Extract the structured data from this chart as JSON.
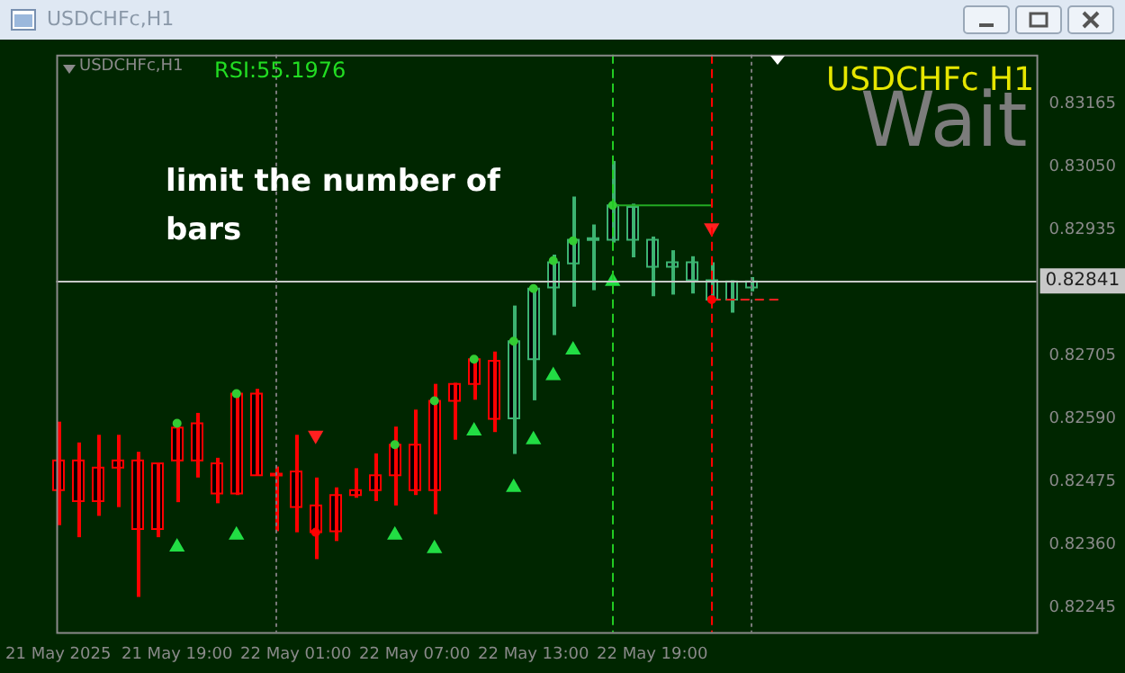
{
  "chart_data": {
    "type": "candlestick",
    "title": "USDCHFc,H1",
    "annotations": [
      "USDCHFc,H1",
      "RSI:55.1976",
      "USDCHFc H1",
      "Wait",
      "limit the number of bars"
    ],
    "x": [
      "2025-05-21T13:00",
      "2025-05-21T14:00",
      "2025-05-21T15:00",
      "2025-05-21T16:00",
      "2025-05-21T17:00",
      "2025-05-21T18:00",
      "2025-05-21T19:00",
      "2025-05-21T20:00",
      "2025-05-21T21:00",
      "2025-05-21T22:00",
      "2025-05-21T23:00",
      "2025-05-22T00:00",
      "2025-05-22T01:00",
      "2025-05-22T02:00",
      "2025-05-22T03:00",
      "2025-05-22T04:00",
      "2025-05-22T05:00",
      "2025-05-22T06:00",
      "2025-05-22T07:00",
      "2025-05-22T08:00",
      "2025-05-22T09:00",
      "2025-05-22T10:00",
      "2025-05-22T11:00",
      "2025-05-22T12:00",
      "2025-05-22T13:00",
      "2025-05-22T14:00",
      "2025-05-22T15:00",
      "2025-05-22T16:00",
      "2025-05-22T17:00",
      "2025-05-22T18:00",
      "2025-05-22T19:00",
      "2025-05-22T20:00",
      "2025-05-22T21:00",
      "2025-05-22T22:00",
      "2025-05-22T23:00",
      "2025-05-23T00:00"
    ],
    "ohlc": [
      [
        0.82513,
        0.82584,
        0.82395,
        0.82459
      ],
      [
        0.82513,
        0.82546,
        0.82373,
        0.82439
      ],
      [
        0.825,
        0.8256,
        0.82412,
        0.82439
      ],
      [
        0.82513,
        0.8256,
        0.82428,
        0.825
      ],
      [
        0.82513,
        0.82529,
        0.82264,
        0.82388
      ],
      [
        0.82508,
        0.82508,
        0.82373,
        0.82388
      ],
      [
        0.82573,
        0.82581,
        0.82437,
        0.82513
      ],
      [
        0.82581,
        0.826,
        0.82482,
        0.82513
      ],
      [
        0.82508,
        0.82518,
        0.82435,
        0.82453
      ],
      [
        0.82635,
        0.82635,
        0.8245,
        0.82453
      ],
      [
        0.82635,
        0.82644,
        0.82486,
        0.82486
      ],
      [
        0.82489,
        0.82502,
        0.82384,
        0.82489
      ],
      [
        0.82493,
        0.8256,
        0.82382,
        0.82428
      ],
      [
        0.82431,
        0.82482,
        0.82333,
        0.82382
      ],
      [
        0.8245,
        0.82464,
        0.82366,
        0.82384
      ],
      [
        0.82459,
        0.82499,
        0.82445,
        0.8245
      ],
      [
        0.82486,
        0.82526,
        0.82439,
        0.82459
      ],
      [
        0.82542,
        0.82575,
        0.82431,
        0.82486
      ],
      [
        0.82542,
        0.82606,
        0.8245,
        0.82459
      ],
      [
        0.82622,
        0.82653,
        0.82415,
        0.82459
      ],
      [
        0.82653,
        0.82655,
        0.82551,
        0.82622
      ],
      [
        0.82698,
        0.82698,
        0.82624,
        0.82653
      ],
      [
        0.82695,
        0.82712,
        0.82565,
        0.82589
      ],
      [
        0.8259,
        0.82796,
        0.82525,
        0.82731
      ],
      [
        0.82698,
        0.82829,
        0.82623,
        0.82827
      ],
      [
        0.82829,
        0.82889,
        0.82742,
        0.82875
      ],
      [
        0.82873,
        0.82995,
        0.82794,
        0.82916
      ],
      [
        0.82919,
        0.82944,
        0.82824,
        0.82919
      ],
      [
        0.82916,
        0.8306,
        0.82911,
        0.82979
      ],
      [
        0.82916,
        0.82982,
        0.82884,
        0.82976
      ],
      [
        0.82867,
        0.82922,
        0.82813,
        0.82916
      ],
      [
        0.82867,
        0.82897,
        0.82816,
        0.82875
      ],
      [
        0.82842,
        0.82886,
        0.82818,
        0.82875
      ],
      [
        0.82807,
        0.82875,
        0.82807,
        0.82842
      ],
      [
        0.82807,
        0.82842,
        0.82783,
        0.8284
      ],
      [
        0.82829,
        0.82848,
        0.82822,
        0.8284
      ]
    ],
    "colors": [
      "#ff0000",
      "#ff0000",
      "#ff0000",
      "#ff0000",
      "#ff0000",
      "#ff0000",
      "#ff0000",
      "#ff0000",
      "#ff0000",
      "#ff0000",
      "#ff0000",
      "#ff0000",
      "#ff0000",
      "#ff0000",
      "#ff0000",
      "#ff0000",
      "#ff0000",
      "#ff0000",
      "#ff0000",
      "#ff0000",
      "#ff0000",
      "#ff0000",
      "#ff0000",
      "#3cb371",
      "#3cb371",
      "#3cb371",
      "#3cb371",
      "#3cb371",
      "#3cb371",
      "#3cb371",
      "#3cb371",
      "#3cb371",
      "#3cb371",
      "#3cb371",
      "#3cb371",
      "#3cb371"
    ],
    "series": [
      {
        "type": "scatter",
        "color": "#33cc33",
        "marker": "circle",
        "x": [
          "2025-05-21T19:00",
          "2025-05-21T22:00",
          "2025-05-22T06:00",
          "2025-05-22T08:00",
          "2025-05-22T10:00",
          "2025-05-22T12:00",
          "2025-05-22T13:00",
          "2025-05-22T14:00",
          "2025-05-22T15:00",
          "2025-05-22T17:00"
        ],
        "values": [
          0.82581,
          0.82635,
          0.82542,
          0.82622,
          0.82698,
          0.82731,
          0.82827,
          0.82878,
          0.82914,
          0.82979
        ]
      },
      {
        "type": "scatter",
        "color": "#ff0000",
        "marker": "circle",
        "x": [
          "2025-05-22T02:00",
          "2025-05-22T22:00"
        ],
        "values": [
          0.82382,
          0.82807
        ]
      },
      {
        "type": "scatter",
        "color": "#22dd44",
        "marker": "triangle",
        "x": [
          "2025-05-21T19:00",
          "2025-05-21T22:00",
          "2025-05-22T06:00",
          "2025-05-22T08:00",
          "2025-05-22T10:00",
          "2025-05-22T12:00",
          "2025-05-22T13:00",
          "2025-05-22T14:00",
          "2025-05-22T15:00",
          "2025-05-22T17:00"
        ],
        "values": [
          0.82355,
          0.82377,
          0.82377,
          0.82352,
          0.82567,
          0.82464,
          0.82551,
          0.82668,
          0.82715,
          0.8284
        ]
      },
      {
        "type": "scatter",
        "color": "#ff2020",
        "marker": "triangle",
        "x": [
          "2025-05-22T02:00",
          "2025-05-22T22:00"
        ],
        "values": [
          0.82559,
          0.82938
        ]
      },
      {
        "type": "line",
        "color": "#22aa22",
        "line_style": "solid",
        "x": [
          "2025-05-22T17:00",
          "2025-05-22T22:00"
        ],
        "values": [
          0.82979,
          0.82979
        ]
      },
      {
        "type": "line",
        "color": "#ff2020",
        "line_style": "dashed",
        "x": [
          "2025-05-22T22:00",
          "2025-05-23T01:30"
        ],
        "values": [
          0.82807,
          0.82807
        ]
      }
    ],
    "ref_lines": [
      {
        "axis": "y",
        "value": 0.82841,
        "label": "0.82841",
        "color": "#c8c8c8",
        "line_style": "solid"
      },
      {
        "axis": "x",
        "value": "2025-05-22T00:00",
        "color": "#7a7a7a",
        "line_style": "dotted"
      },
      {
        "axis": "x",
        "value": "2025-05-22T17:00",
        "color": "#22cc22",
        "line_style": "dashed"
      },
      {
        "axis": "x",
        "value": "2025-05-22T22:00",
        "color": "#ff0000",
        "line_style": "dashed"
      },
      {
        "axis": "x",
        "value": "2025-05-23T00:00",
        "color": "#7a7a7a",
        "line_style": "dotted"
      }
    ],
    "xlim": [
      "2025-05-21T12:54",
      "2025-05-23T14:24"
    ],
    "xticks": [
      {
        "value": "2025-05-21T13:00",
        "label": "21 May 2025"
      },
      {
        "value": "2025-05-21T19:00",
        "label": "21 May 19:00"
      },
      {
        "value": "2025-05-22T01:00",
        "label": "22 May 01:00"
      },
      {
        "value": "2025-05-22T07:00",
        "label": "22 May 07:00"
      },
      {
        "value": "2025-05-22T13:00",
        "label": "22 May 13:00"
      },
      {
        "value": "2025-05-22T19:00",
        "label": "22 May 19:00"
      }
    ],
    "ylim": [
      0.822,
      0.83254
    ],
    "yticks": [
      0.82245,
      {
        "value": 0.8236,
        "label": "0.82360"
      },
      0.82475,
      {
        "value": 0.8259,
        "label": "0.82590"
      },
      0.82705,
      0.82935,
      {
        "value": 0.8305,
        "label": "0.83050"
      },
      0.83165
    ],
    "grid": false,
    "legend": false
  }
}
